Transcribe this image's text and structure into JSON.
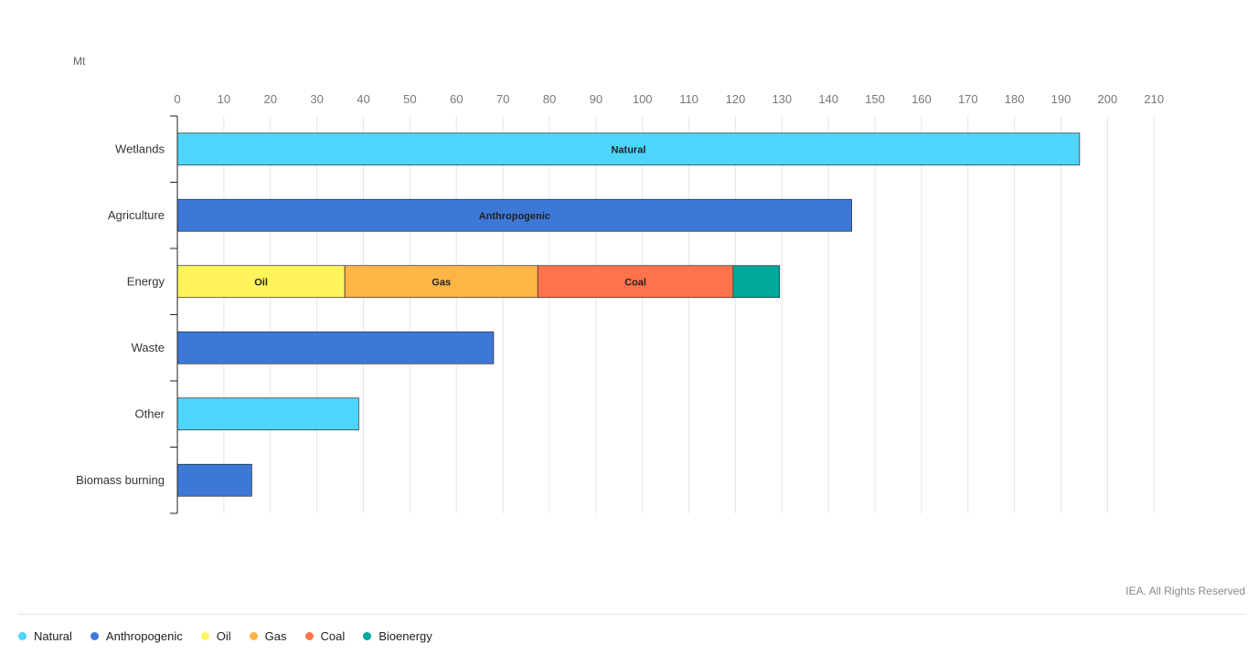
{
  "chart_data": {
    "type": "bar",
    "orientation": "horizontal",
    "stacked": true,
    "unit": "Mt",
    "credit": "IEA. All Rights Reserved",
    "x_ticks": [
      0,
      10,
      20,
      30,
      40,
      50,
      60,
      70,
      80,
      90,
      100,
      110,
      120,
      130,
      140,
      150,
      160,
      170,
      180,
      190,
      200,
      210
    ],
    "xlim": [
      0,
      210
    ],
    "grid": true,
    "legend_position": "bottom-left",
    "categories": [
      "Wetlands",
      "Agriculture",
      "Energy",
      "Waste",
      "Other",
      "Biomass burning"
    ],
    "series": [
      {
        "name": "Natural",
        "color": "#4dd5fc",
        "values": [
          194,
          0,
          0,
          0,
          39,
          0
        ]
      },
      {
        "name": "Anthropogenic",
        "color": "#3d78d6",
        "values": [
          0,
          145,
          0,
          68,
          0,
          16
        ]
      },
      {
        "name": "Oil",
        "color": "#fff459",
        "values": [
          0,
          0,
          36,
          0,
          0,
          0
        ]
      },
      {
        "name": "Gas",
        "color": "#fdb546",
        "values": [
          0,
          0,
          41.5,
          0,
          0,
          0
        ]
      },
      {
        "name": "Coal",
        "color": "#ff734c",
        "values": [
          0,
          0,
          42,
          0,
          0,
          0
        ]
      },
      {
        "name": "Bioenergy",
        "color": "#00a89b",
        "values": [
          0,
          0,
          10,
          0,
          0,
          0
        ]
      }
    ],
    "segment_labels": [
      {
        "category": "Wetlands",
        "series": "Natural",
        "text": "Natural"
      },
      {
        "category": "Agriculture",
        "series": "Anthropogenic",
        "text": "Anthropogenic"
      },
      {
        "category": "Energy",
        "series": "Oil",
        "text": "Oil"
      },
      {
        "category": "Energy",
        "series": "Gas",
        "text": "Gas"
      },
      {
        "category": "Energy",
        "series": "Coal",
        "text": "Coal"
      }
    ]
  }
}
